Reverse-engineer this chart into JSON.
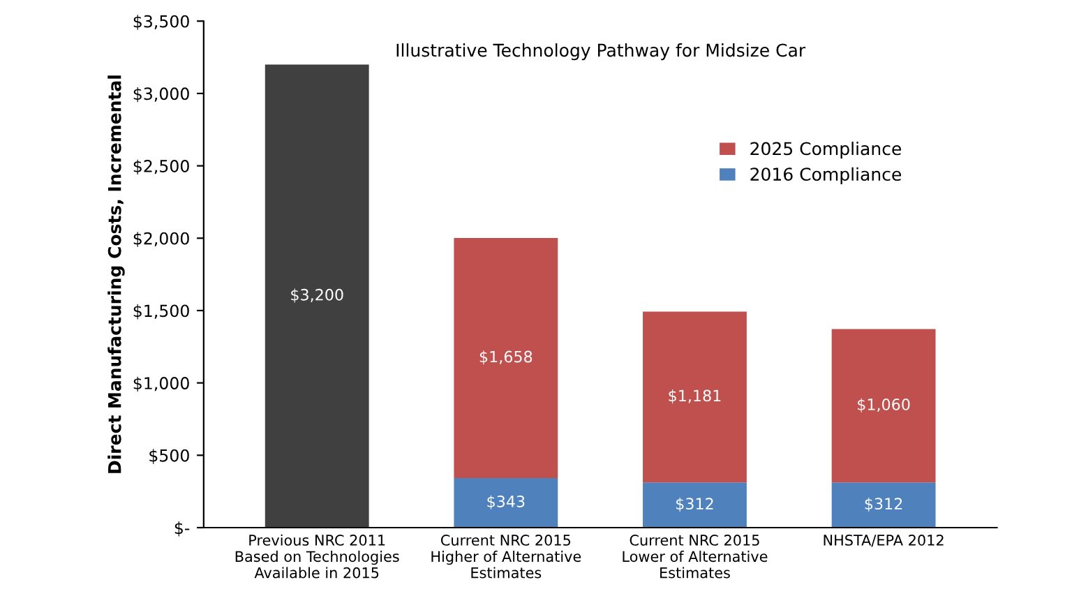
{
  "chart_data": {
    "type": "bar",
    "stacked": true,
    "title": "Illustrative Technology Pathway for Midsize Car",
    "ylabel": "Direct Manufacturing Costs, Incremental",
    "categories": [
      "Previous NRC 2011\nBased on Technologies\nAvailable in 2015",
      "Current NRC 2015\nHigher of Alternative\nEstimates",
      "Current NRC 2015\nLower of Alternative\nEstimates",
      "NHSTA/EPA 2012"
    ],
    "series": [
      {
        "color": "#404040",
        "values": [
          3200,
          null,
          null,
          null
        ],
        "value_labels": [
          "$3,200",
          null,
          null,
          null
        ]
      },
      {
        "name": "2016 Compliance",
        "color": "#4f81bd",
        "values": [
          null,
          343,
          312,
          312
        ],
        "value_labels": [
          null,
          "$343",
          "$312",
          "$312"
        ]
      },
      {
        "name": "2025 Compliance",
        "color": "#c0504d",
        "values": [
          null,
          1658,
          1181,
          1060
        ],
        "value_labels": [
          null,
          "$1,658",
          "$1,181",
          "$1,060"
        ]
      }
    ],
    "ylim": [
      0,
      3500
    ],
    "yticks": [
      {
        "value": 0,
        "label": "$-"
      },
      {
        "value": 500,
        "label": "$500"
      },
      {
        "value": 1000,
        "label": "$1,000"
      },
      {
        "value": 1500,
        "label": "$1,500"
      },
      {
        "value": 2000,
        "label": "$2,000"
      },
      {
        "value": 2500,
        "label": "$2,500"
      },
      {
        "value": 3000,
        "label": "$3,000"
      },
      {
        "value": 3500,
        "label": "$3,500"
      }
    ],
    "grid": false,
    "legend": "right"
  }
}
